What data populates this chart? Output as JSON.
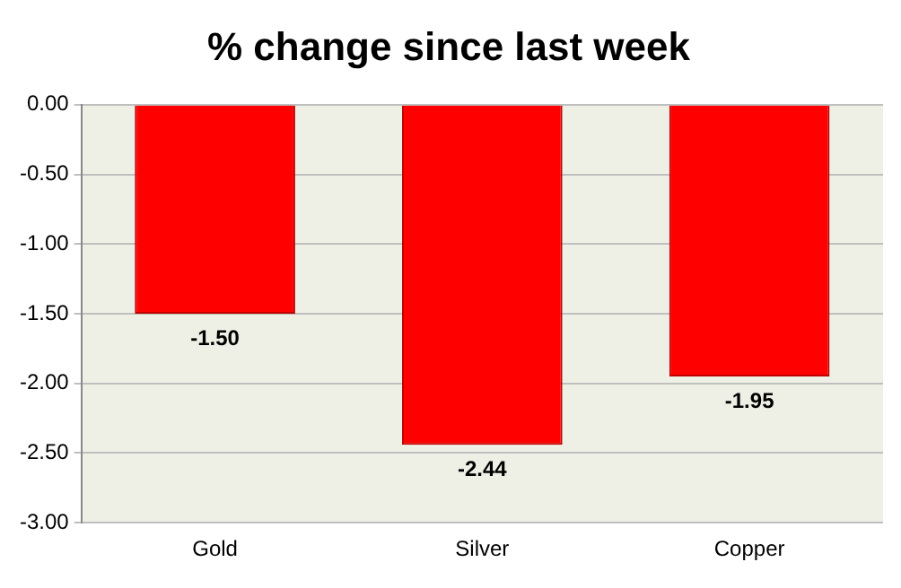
{
  "chart_data": {
    "type": "bar",
    "title": "% change since last week",
    "categories": [
      "Gold",
      "Silver",
      "Copper"
    ],
    "values": [
      -1.5,
      -2.44,
      -1.95
    ],
    "color": "#ff0000",
    "ylim": [
      -3,
      0
    ],
    "yticks": [
      {
        "value": -3,
        "label": "-3.00"
      },
      {
        "value": -2.5,
        "label": "-2.50"
      },
      {
        "value": -2,
        "label": "-2.00"
      },
      {
        "value": -1.5,
        "label": "-1.50"
      },
      {
        "value": -1,
        "label": "-1.00"
      },
      {
        "value": -0.5,
        "label": "-0.50"
      },
      {
        "value": 0,
        "label": "0.00"
      }
    ],
    "value_labels": [
      "-1.50",
      "-2.44",
      "-1.95"
    ],
    "grid": "y",
    "legend": false
  }
}
